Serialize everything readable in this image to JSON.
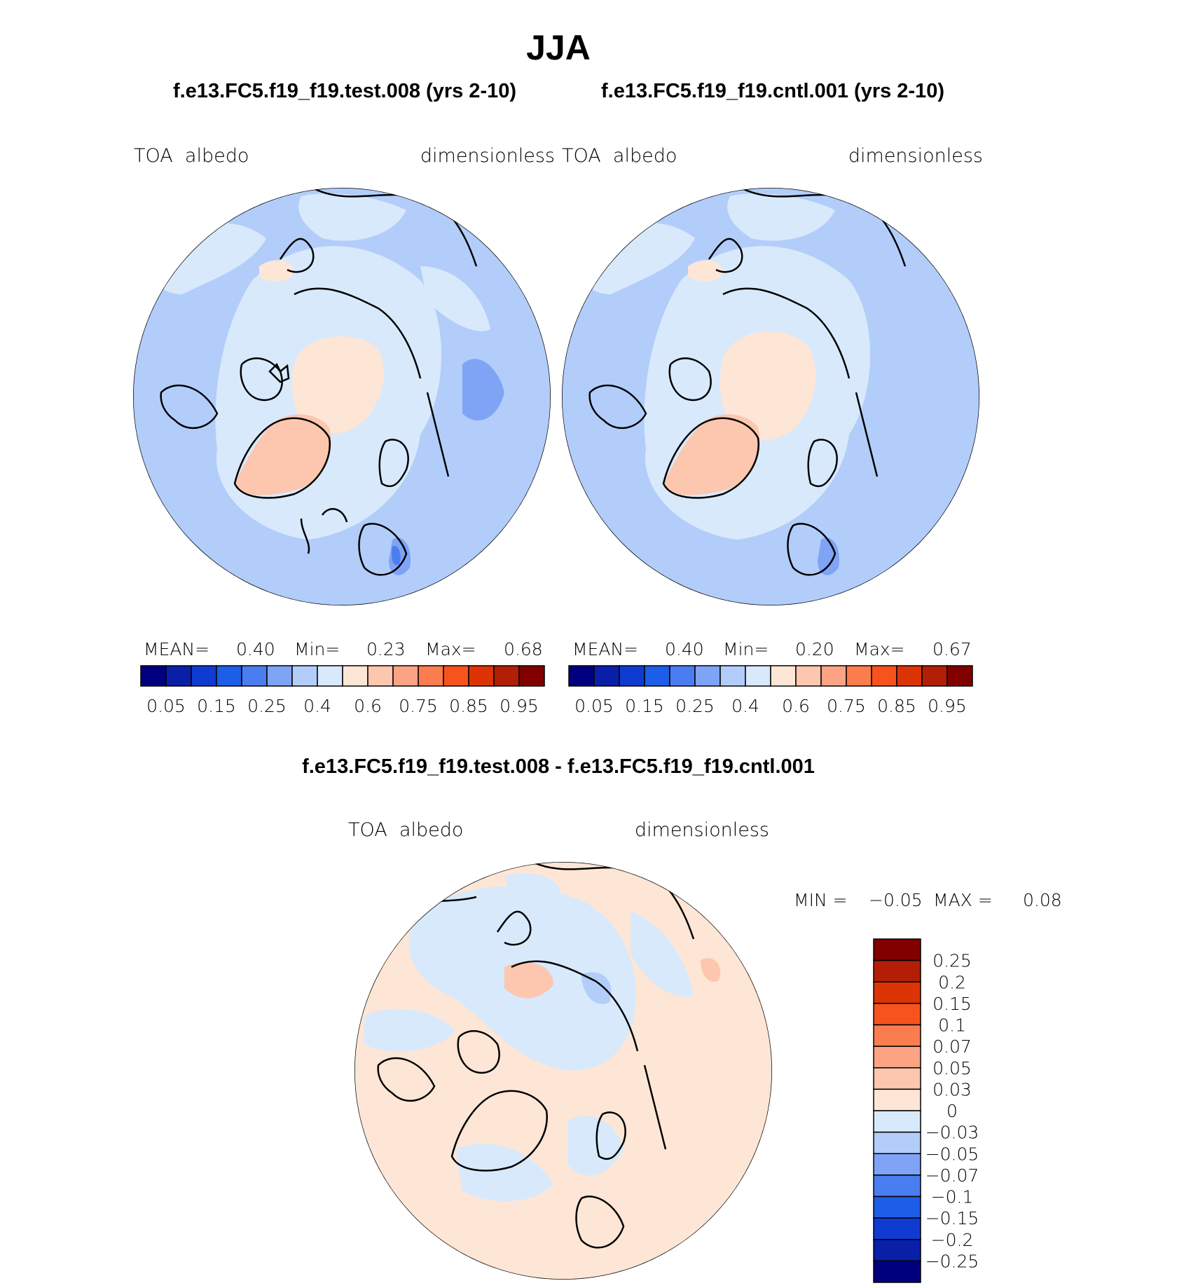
{
  "figure": {
    "title": "JJA",
    "left_case": "f.e13.FC5.f19_f19.test.008 (yrs 2-10)",
    "right_case": "f.e13.FC5.f19_f19.cntl.001 (yrs 2-10)",
    "diff_title": "f.e13.FC5.f19_f19.test.008 - f.e13.FC5.f19_f19.cntl.001"
  },
  "panels": [
    {
      "id": "test",
      "variable": "TOA  albedo",
      "units": "dimensionless",
      "stats": {
        "mean_label": "MEAN=",
        "mean": "0.40",
        "min_label": "Min=",
        "min": "0.23",
        "max_label": "Max=",
        "max": "0.68"
      }
    },
    {
      "id": "cntl",
      "variable": "TOA  albedo",
      "units": "dimensionless",
      "stats": {
        "mean_label": "MEAN=",
        "mean": "0.40",
        "min_label": "Min=",
        "min": "0.20",
        "max_label": "Max=",
        "max": "0.67"
      }
    },
    {
      "id": "diff",
      "variable": "TOA  albedo",
      "units": "dimensionless",
      "stats": {
        "min_label": "MIN =",
        "min": "−0.05",
        "max_label": "MAX =",
        "max": "0.08"
      }
    }
  ],
  "colorbar_main": {
    "colors": [
      "#00007f",
      "#0a1fa8",
      "#0f3bd0",
      "#1d5ee8",
      "#4a7ef0",
      "#7fa3f5",
      "#b3cdfa",
      "#d8e9fc",
      "#fde6d6",
      "#fcc7ae",
      "#fca383",
      "#fb7c4e",
      "#f7531f",
      "#dd3405",
      "#b31e06",
      "#800000"
    ],
    "ticks": [
      "0.05",
      "0.15",
      "0.25",
      "0.4",
      "0.6",
      "0.75",
      "0.85",
      "0.95"
    ]
  },
  "colorbar_diff": {
    "colors": [
      "#800000",
      "#b31e06",
      "#dd3405",
      "#f7531f",
      "#fb7c4e",
      "#fca383",
      "#fcc7ae",
      "#fde6d6",
      "#d8e9fc",
      "#b3cdfa",
      "#7fa3f5",
      "#4a7ef0",
      "#1d5ee8",
      "#0f3bd0",
      "#0a1fa8",
      "#00007f"
    ],
    "ticks": [
      "0.25",
      "0.2",
      "0.15",
      "0.1",
      "0.07",
      "0.05",
      "0.03",
      "0",
      "−0.03",
      "−0.05",
      "−0.07",
      "−0.1",
      "−0.15",
      "−0.2",
      "−0.25"
    ]
  },
  "map_colors": {
    "ocean": "#b3cdfa",
    "sea_ice": "#d8e9fc",
    "bright": "#fde6d6",
    "greenland": "#fcc7ae",
    "dark": "#7fa3f5",
    "darker": "#4a7ef0",
    "diff_pos": "#fde6d6",
    "diff_neg": "#d8e9fc",
    "diff_neg2": "#b3cdfa",
    "diff_pos2": "#fcc7ae"
  }
}
